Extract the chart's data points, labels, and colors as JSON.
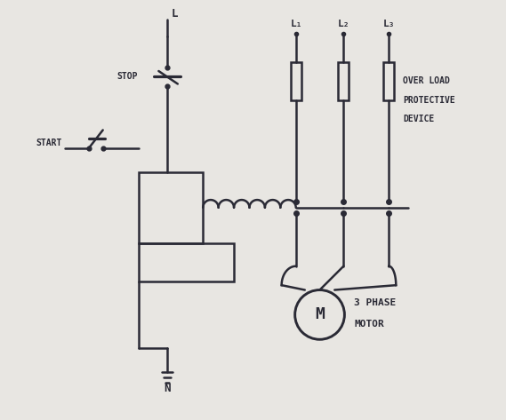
{
  "bg_color": "#e8e6e2",
  "line_color": "#2a2a35",
  "lw": 1.8,
  "labels": {
    "L": "L",
    "N": "N",
    "STOP": "STOP",
    "START": "START",
    "L1": "L₁",
    "L2": "L₂",
    "L3": "L₃",
    "overload1": "OVER LOAD",
    "overload2": "PROTECTIVE",
    "overload3": "DEVICE",
    "motor1": "3 PHASE",
    "motor2": "MOTOR",
    "M": "M"
  },
  "figsize": [
    5.69,
    4.73
  ],
  "dpi": 100
}
